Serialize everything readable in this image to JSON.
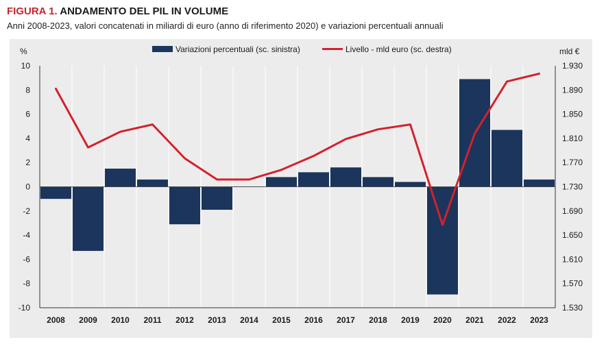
{
  "header": {
    "figure_label": "FIGURA 1.",
    "title": "ANDAMENTO DEL PIL IN VOLUME",
    "subtitle": "Anni 2008-2023, valori concatenati in miliardi di euro (anno di riferimento 2020) e variazioni percentuali annuali"
  },
  "colors": {
    "bars": "#1b355c",
    "line": "#d3212d",
    "panel": "#ececec",
    "title_accent": "#c4262e"
  },
  "chart_data": {
    "type": "bar",
    "categories": [
      "2008",
      "2009",
      "2010",
      "2011",
      "2012",
      "2013",
      "2014",
      "2015",
      "2016",
      "2017",
      "2018",
      "2019",
      "2020",
      "2021",
      "2022",
      "2023"
    ],
    "series": [
      {
        "name": "Variazioni percentuali (sc. sinistra)",
        "type": "bar",
        "axis": "left",
        "values": [
          -1.0,
          -5.3,
          1.5,
          0.6,
          -3.1,
          -1.9,
          0.0,
          0.8,
          1.2,
          1.6,
          0.8,
          0.4,
          -8.9,
          8.9,
          4.7,
          0.6
        ]
      },
      {
        "name": "Livello - mld euro (sc. destra)",
        "type": "line",
        "axis": "right",
        "values": [
          1892,
          1795,
          1821,
          1833,
          1777,
          1742,
          1742,
          1758,
          1781,
          1809,
          1825,
          1833,
          1667,
          1818,
          1904,
          1917
        ]
      }
    ],
    "left_axis": {
      "label": "%",
      "ylim": [
        -10,
        10
      ],
      "ticks": [
        "10",
        "8",
        "6",
        "4",
        "2",
        "0",
        "-2",
        "-4",
        "-6",
        "-8",
        "-10"
      ]
    },
    "right_axis": {
      "label": "mld €",
      "ylim": [
        1530,
        1930
      ],
      "ticks": [
        "1.930",
        "1.890",
        "1.850",
        "1.810",
        "1.770",
        "1.730",
        "1.690",
        "1.650",
        "1.610",
        "1.570",
        "1.530"
      ]
    },
    "grid": "vertical",
    "legend_position": "top"
  }
}
